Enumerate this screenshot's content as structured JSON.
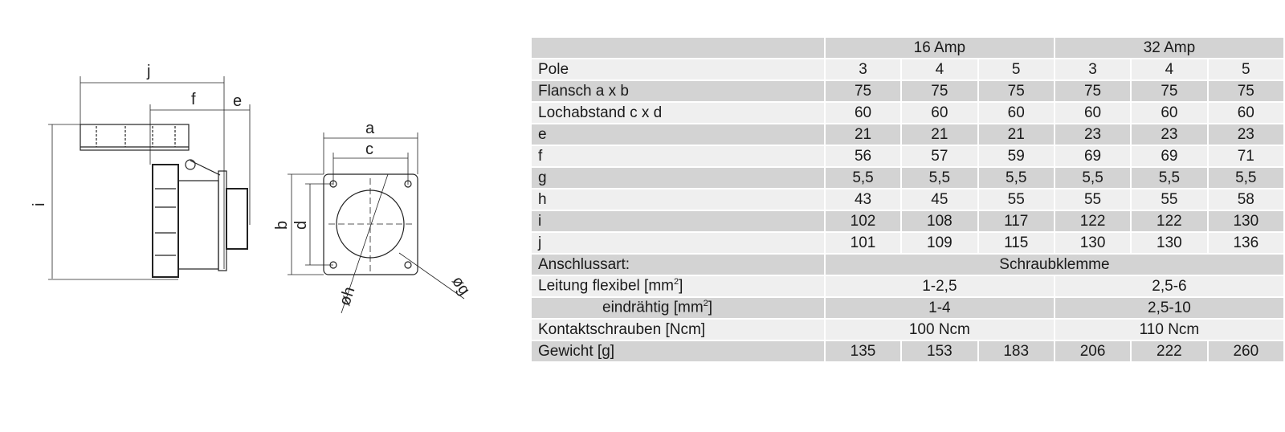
{
  "drawing": {
    "dims": {
      "a": "a",
      "b": "b",
      "c": "c",
      "d": "d",
      "e": "e",
      "f": "f",
      "g": "øg",
      "h": "øh",
      "i": "i",
      "j": "j"
    }
  },
  "table": {
    "groups": [
      "16 Amp",
      "32 Amp"
    ],
    "rows": [
      {
        "label": "Pole",
        "values": [
          "3",
          "4",
          "5",
          "3",
          "4",
          "5"
        ]
      },
      {
        "label": "Flansch a x b",
        "values": [
          "75",
          "75",
          "75",
          "75",
          "75",
          "75"
        ]
      },
      {
        "label": "Lochabstand c x d",
        "values": [
          "60",
          "60",
          "60",
          "60",
          "60",
          "60"
        ]
      },
      {
        "label": "e",
        "values": [
          "21",
          "21",
          "21",
          "23",
          "23",
          "23"
        ]
      },
      {
        "label": "f",
        "values": [
          "56",
          "57",
          "59",
          "69",
          "69",
          "71"
        ]
      },
      {
        "label": "g",
        "values": [
          "5,5",
          "5,5",
          "5,5",
          "5,5",
          "5,5",
          "5,5"
        ]
      },
      {
        "label": "h",
        "values": [
          "43",
          "45",
          "55",
          "55",
          "55",
          "58"
        ]
      },
      {
        "label": "i",
        "values": [
          "102",
          "108",
          "117",
          "122",
          "122",
          "130"
        ]
      },
      {
        "label": "j",
        "values": [
          "101",
          "109",
          "115",
          "130",
          "130",
          "136"
        ]
      }
    ],
    "anschlussart": {
      "label": "Anschlussart:",
      "value": "Schraubklemme"
    },
    "leitung": {
      "label": "Leitung flexibel [mm",
      "unit_sup": "2",
      "unit_close": "]",
      "v16": "1-2,5",
      "v32": "2,5-6"
    },
    "eindraehtig": {
      "label": "eindrähtig [mm",
      "unit_sup": "2",
      "unit_close": "]",
      "v16": "1-4",
      "v32": "2,5-10"
    },
    "kontakt": {
      "label": "Kontaktschrauben [Ncm]",
      "v16": "100 Ncm",
      "v32": "110 Ncm"
    },
    "gewicht": {
      "label": "Gewicht [g]",
      "values": [
        "135",
        "153",
        "183",
        "206",
        "222",
        "260"
      ]
    }
  }
}
